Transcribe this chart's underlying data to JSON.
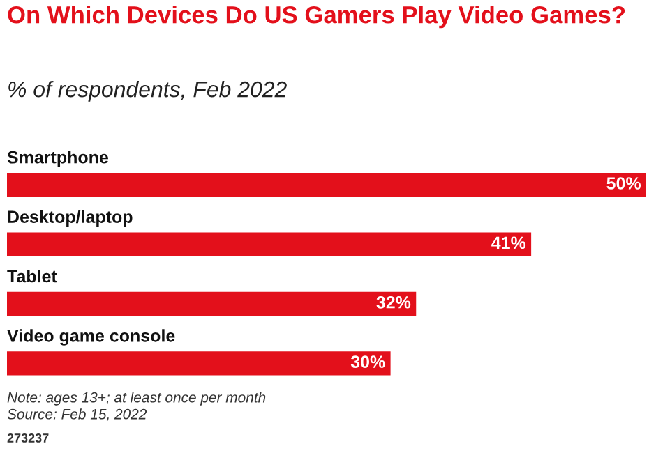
{
  "chart_data": {
    "type": "bar",
    "orientation": "horizontal",
    "title": "On Which Devices Do US Gamers Play Video Games?",
    "subtitle": "% of respondents, Feb 2022",
    "categories": [
      "Smartphone",
      "Desktop/laptop",
      "Tablet",
      "Video game console"
    ],
    "values": [
      50,
      41,
      32,
      30
    ],
    "value_labels": [
      "50%",
      "41%",
      "32%",
      "30%"
    ],
    "color": "#e3101b",
    "tick_labels": false,
    "annotations": [
      "Note: ages 13+; at least once per month",
      "Source: Feb 15, 2022",
      "273237"
    ]
  }
}
